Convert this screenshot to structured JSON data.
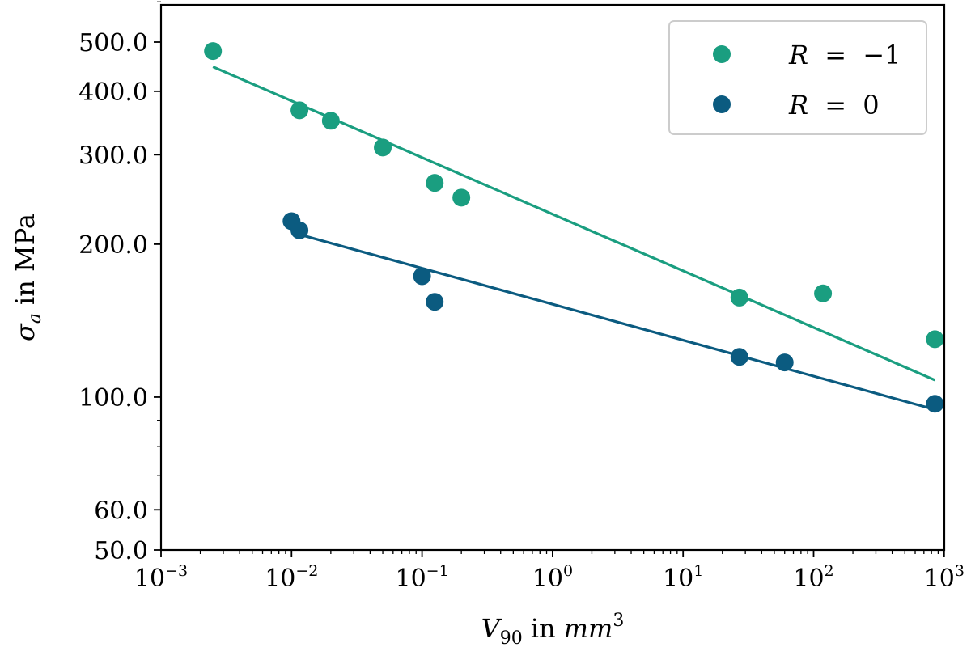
{
  "chart_data": {
    "type": "scatter",
    "xscale": "log",
    "yscale": "log",
    "xlim": [
      0.001,
      1000
    ],
    "ylim": [
      50,
      600
    ],
    "xlabel": {
      "symbol_base": "V",
      "symbol_sub": "90",
      "word": "in",
      "unit_base": "mm",
      "unit_sup": "3"
    },
    "ylabel": {
      "symbol_base": "σ",
      "symbol_sub": "a",
      "text": "in MPa"
    },
    "x_ticks": [
      {
        "value": 0.001,
        "base": "10",
        "exp": "−3"
      },
      {
        "value": 0.01,
        "base": "10",
        "exp": "−2"
      },
      {
        "value": 0.1,
        "base": "10",
        "exp": "−1"
      },
      {
        "value": 1,
        "base": "10",
        "exp": "0"
      },
      {
        "value": 10,
        "base": "10",
        "exp": "1"
      },
      {
        "value": 100,
        "base": "10",
        "exp": "2"
      },
      {
        "value": 1000,
        "base": "10",
        "exp": "3"
      }
    ],
    "y_ticks": [
      {
        "value": 50,
        "label": "50.0"
      },
      {
        "value": 60,
        "label": "60.0"
      },
      {
        "value": 100,
        "label": "100.0"
      },
      {
        "value": 200,
        "label": "200.0"
      },
      {
        "value": 300,
        "label": "300.0"
      },
      {
        "value": 400,
        "label": "400.0"
      },
      {
        "value": 500,
        "label": "500.0"
      }
    ],
    "y_minor_ticks": [
      70,
      80,
      90,
      600
    ],
    "legend_position": "top-right",
    "series": [
      {
        "name": "R = −1",
        "legend": {
          "var": "R",
          "op": "=",
          "val": "−1"
        },
        "color": "#1a9e80",
        "points": [
          {
            "x": 0.0025,
            "y": 480
          },
          {
            "x": 0.0115,
            "y": 367
          },
          {
            "x": 0.02,
            "y": 350
          },
          {
            "x": 0.05,
            "y": 310
          },
          {
            "x": 0.125,
            "y": 264
          },
          {
            "x": 0.2,
            "y": 247
          },
          {
            "x": 27,
            "y": 157
          },
          {
            "x": 118,
            "y": 160
          },
          {
            "x": 850,
            "y": 130
          }
        ],
        "fit": {
          "x": [
            0.0025,
            850
          ],
          "y": [
            447,
            108
          ]
        }
      },
      {
        "name": "R = 0",
        "legend": {
          "var": "R",
          "op": "=",
          "val": "0"
        },
        "color": "#0b5b80",
        "points": [
          {
            "x": 0.01,
            "y": 222
          },
          {
            "x": 0.0115,
            "y": 213
          },
          {
            "x": 0.1,
            "y": 173
          },
          {
            "x": 0.125,
            "y": 154
          },
          {
            "x": 27,
            "y": 120
          },
          {
            "x": 60,
            "y": 117
          },
          {
            "x": 850,
            "y": 97
          }
        ],
        "fit": {
          "x": [
            0.0115,
            850
          ],
          "y": [
            209,
            94.5
          ]
        }
      }
    ]
  }
}
